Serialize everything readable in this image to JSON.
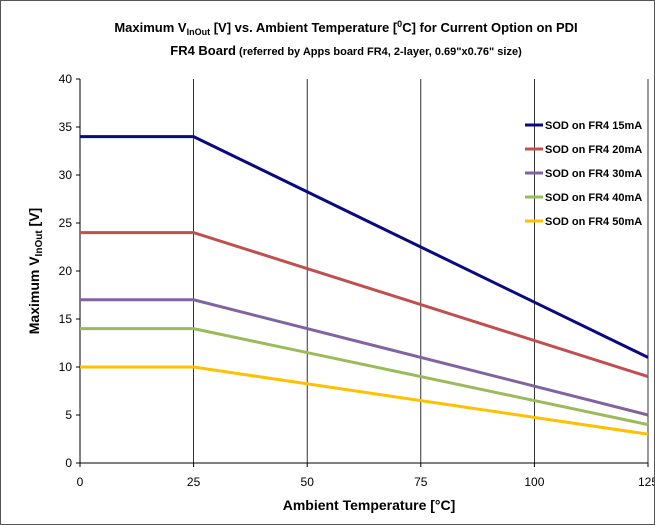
{
  "chart_data": {
    "type": "line",
    "title_line1_prefix": "Maximum V",
    "title_line1_sub": "InOut",
    "title_line1_mid": " [V] vs. Ambient Temperature [",
    "title_line1_sup": "0",
    "title_line1_suffix": "C] for Current Option on PDI",
    "title_line2_main": "FR4 Board",
    "title_line2_note": " (referred by Apps board FR4, 2-layer, 0.69\"x0.76\" size)",
    "xlabel": "Ambient Temperature [°C]",
    "ylabel_main": "Maximum  V",
    "ylabel_sub": "InOut",
    "ylabel_suffix": " [V]",
    "xlim": [
      0,
      125
    ],
    "ylim": [
      0,
      40
    ],
    "xticks": [
      "0",
      "25",
      "50",
      "75",
      "100",
      "125"
    ],
    "yticks": [
      "0",
      "5",
      "10",
      "15",
      "20",
      "25",
      "30",
      "35",
      "40"
    ],
    "grid": "vertical",
    "legend_position": "right",
    "x": [
      0,
      25,
      125
    ],
    "series": [
      {
        "name": "SOD on FR4 15mA",
        "values": [
          34,
          34,
          11
        ],
        "color": "#0a0a80"
      },
      {
        "name": "SOD on FR4 20mA",
        "values": [
          24,
          24,
          9
        ],
        "color": "#c0504d"
      },
      {
        "name": "SOD on FR4 30mA",
        "values": [
          17,
          17,
          5
        ],
        "color": "#8064a2"
      },
      {
        "name": "SOD on FR4 40mA",
        "values": [
          14,
          14,
          4
        ],
        "color": "#9bbb59"
      },
      {
        "name": "SOD on FR4 50mA",
        "values": [
          10,
          10,
          3
        ],
        "color": "#ffc000"
      }
    ]
  }
}
